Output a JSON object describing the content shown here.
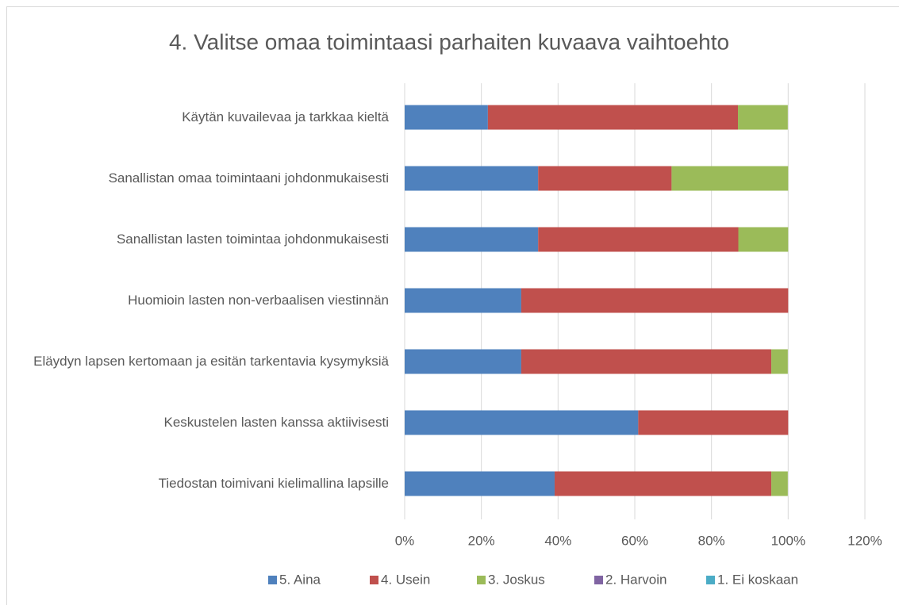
{
  "chart_data": {
    "type": "stacked-bar-horizontal",
    "title": "4. Valitse omaa toimintaasi parhaiten kuvaava vaihtoehto",
    "categories": [
      "Käytän kuvailevaa ja tarkkaa kieltä",
      "Sanallistan omaa toimintaani johdonmukaisesti",
      "Sanallistan lasten toimintaa johdonmukaisesti",
      "Huomioin lasten non-verbaalisen viestinnän",
      "Eläydyn lapsen kertomaan ja esitän tarkentavia kysymyksiä",
      "Keskustelen lasten kanssa aktiivisesti",
      "Tiedostan toimivani kielimallina lapsille"
    ],
    "series": [
      {
        "name": "5. Aina",
        "color": "#4f81bd",
        "values": [
          21.7,
          34.8,
          34.8,
          30.4,
          30.4,
          60.9,
          39.1
        ]
      },
      {
        "name": "4. Usein",
        "color": "#c0504d",
        "values": [
          65.2,
          34.8,
          52.2,
          69.6,
          65.2,
          39.1,
          56.5
        ]
      },
      {
        "name": "3. Joskus",
        "color": "#9bbb59",
        "values": [
          13.0,
          30.4,
          13.0,
          0,
          4.3,
          0,
          4.3
        ]
      },
      {
        "name": "2. Harvoin",
        "color": "#8064a2",
        "values": [
          0,
          0,
          0,
          0,
          0,
          0,
          0
        ]
      },
      {
        "name": "1. Ei koskaan",
        "color": "#4bacc6",
        "values": [
          0,
          0,
          0,
          0,
          0,
          0,
          0
        ]
      }
    ],
    "xlim": [
      0,
      120
    ],
    "xticks": [
      {
        "value": 0,
        "label": "0%"
      },
      {
        "value": 20,
        "label": "20%"
      },
      {
        "value": 40,
        "label": "40%"
      },
      {
        "value": 60,
        "label": "60%"
      },
      {
        "value": 80,
        "label": "80%"
      },
      {
        "value": 100,
        "label": "100%"
      },
      {
        "value": 120,
        "label": "120%"
      }
    ],
    "grid": true,
    "legend": "bottom"
  }
}
